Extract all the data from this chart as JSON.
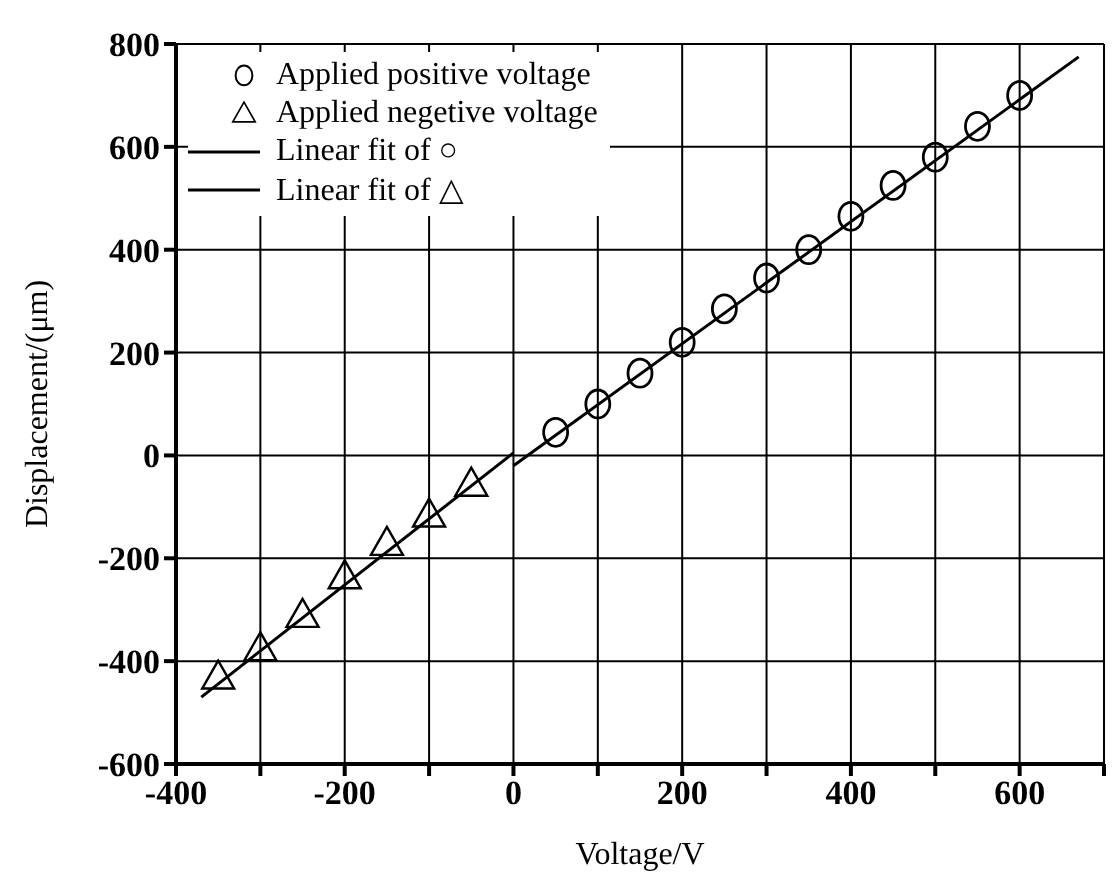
{
  "chart_data": {
    "type": "scatter",
    "xlabel": "Voltage/V",
    "ylabel": "Displacement/(μm)",
    "xlim": [
      -400,
      700
    ],
    "ylim": [
      -600,
      800
    ],
    "xticks": [
      -400,
      {
        "value": -300,
        "label": null
      },
      -200,
      {
        "value": -100,
        "label": null
      },
      0,
      {
        "value": 100,
        "label": null
      },
      200,
      {
        "value": 300,
        "label": null
      },
      400,
      {
        "value": 500,
        "label": null
      },
      600,
      {
        "value": 700,
        "label": null
      }
    ],
    "yticks": [
      -600,
      -400,
      -200,
      0,
      200,
      400,
      600,
      800
    ],
    "grid": true,
    "legend": "top left",
    "series": [
      {
        "name": "Applied positive voltage",
        "marker": "circle",
        "color": "#000000",
        "x": [
          50,
          100,
          150,
          200,
          250,
          300,
          350,
          400,
          450,
          500,
          550,
          600
        ],
        "values": [
          45,
          100,
          160,
          220,
          285,
          345,
          400,
          465,
          525,
          580,
          640,
          700
        ]
      },
      {
        "name": "Applied negetive voltage",
        "marker": "triangle",
        "color": "#000000",
        "x": [
          -350,
          -300,
          -250,
          -200,
          -150,
          -100,
          -50
        ],
        "values": [
          -430,
          -375,
          -310,
          -235,
          -170,
          -115,
          -55
        ]
      },
      {
        "name": "Linear fit of ○",
        "type": "line",
        "marker": "none",
        "line_style": "solid",
        "color": "#000000",
        "x": [
          0,
          670
        ],
        "values": [
          -20,
          775
        ]
      },
      {
        "name": "Linear fit of △",
        "type": "line",
        "marker": "none",
        "line_style": "solid",
        "color": "#000000",
        "x": [
          -370,
          0
        ],
        "values": [
          -470,
          5
        ]
      }
    ]
  }
}
